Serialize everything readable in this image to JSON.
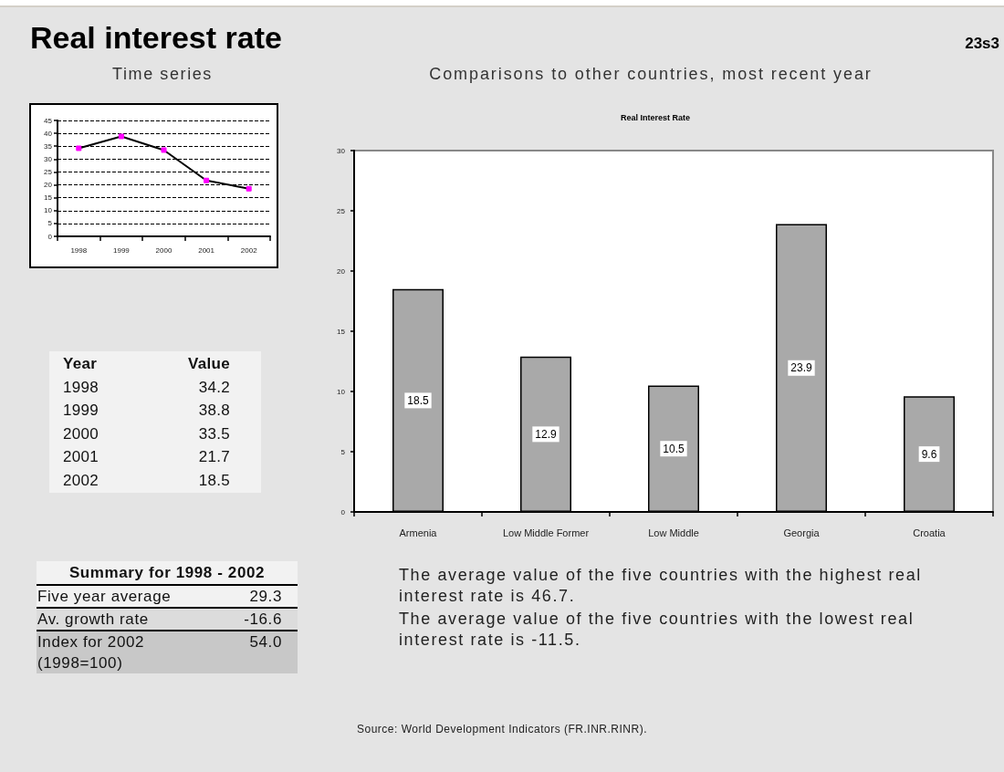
{
  "chart_data": [
    {
      "type": "line",
      "title": "Real interest rate",
      "subtitle": "Time series",
      "categories": [
        "1998",
        "1999",
        "2000",
        "2001",
        "2002"
      ],
      "values": [
        34.2,
        38.8,
        33.5,
        21.7,
        18.5
      ],
      "color": "#000000",
      "colors": [
        "#ff00ff",
        "#ff00ff",
        "#ff00ff",
        "#ff00ff",
        "#ff00ff"
      ],
      "ylim": [
        0,
        45
      ],
      "yticks": [
        0,
        5,
        10,
        15,
        20,
        25,
        30,
        35,
        40,
        45
      ],
      "grid": "y",
      "marker": "square",
      "line_style": "solid",
      "annotations": [
        "Year",
        "Value",
        "1998",
        "34.2",
        "1999",
        "38.8",
        "2000",
        "33.5",
        "2001",
        "21.7",
        "2002",
        "18.5"
      ]
    },
    {
      "type": "bar",
      "title": "Real Interest Rate",
      "subtitle": "Comparisons to other countries, most recent year",
      "categories": [
        "Armenia",
        "Low Middle Former",
        "Low Middle",
        "Georgia",
        "Croatia"
      ],
      "values": [
        18.5,
        12.9,
        10.5,
        23.9,
        9.6
      ],
      "color": "#a9a9a9",
      "ylim": [
        0,
        30
      ],
      "yticks": [
        0,
        5,
        10,
        15,
        20,
        25,
        30
      ],
      "data_labels": true,
      "annotations": [
        "23s3",
        "The average value of the five countries with the highest real interest rate is 46.7.",
        "The average value of the five countries with the lowest real interest rate is -11.5.",
        "Source: World Development Indicators (FR.INR.RINR)."
      ]
    },
    {
      "type": "other",
      "title": "Summary for 1998 - 2002",
      "categories": [
        "Five year average",
        "Av. growth rate",
        "Index for 2002 (1998=100)"
      ],
      "values": [
        29.3,
        -16.6,
        54.0
      ],
      "value_labels": [
        "29.3",
        "-16.6",
        "54.0"
      ],
      "colors": [
        "#f2f2f2",
        "#dcdcdc",
        "#c8c8c8"
      ]
    }
  ]
}
